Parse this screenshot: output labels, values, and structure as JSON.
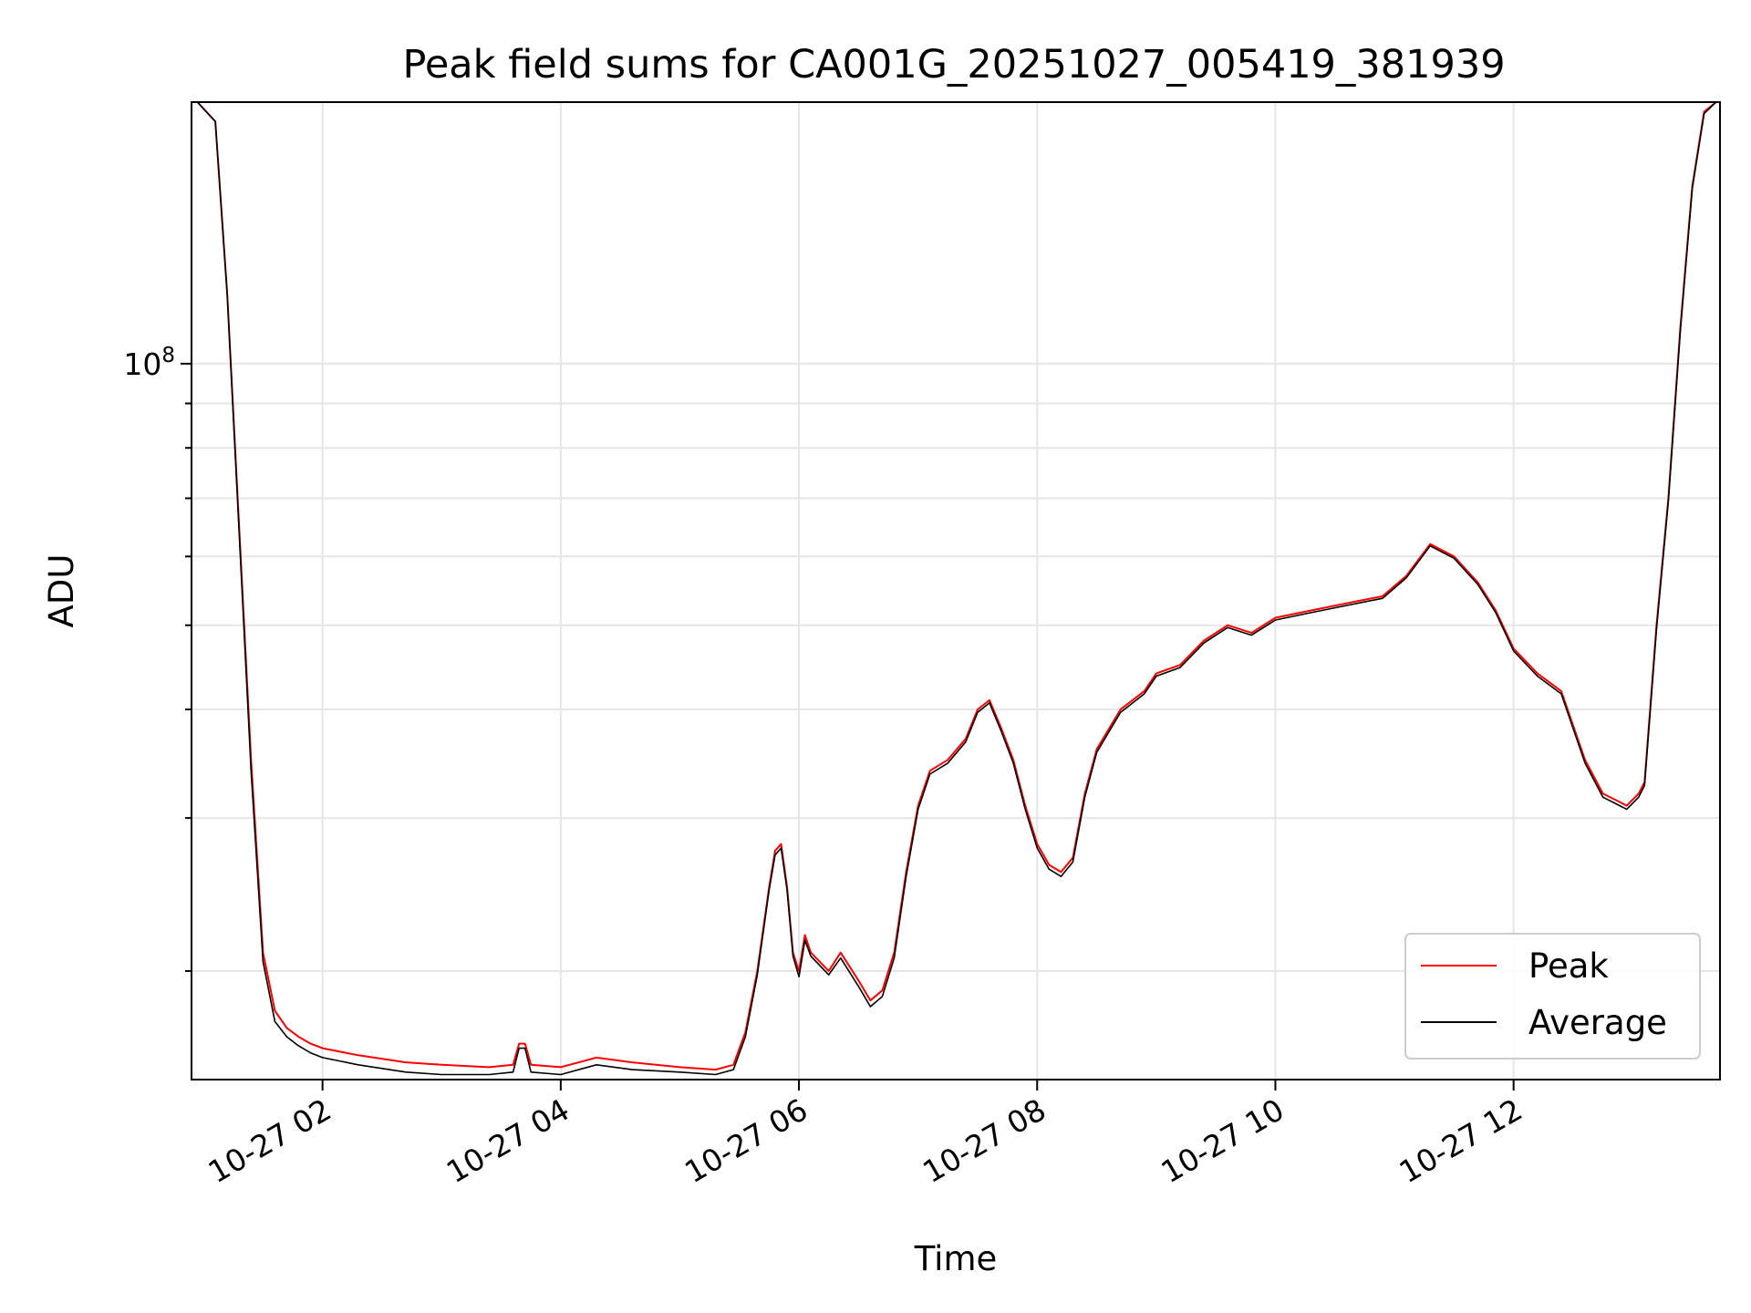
{
  "chart_data": {
    "type": "line",
    "title": "Peak field sums for CA001G_20251027_005419_381939",
    "xlabel": "Time",
    "ylabel": "ADU",
    "y_scale": "log",
    "grid": true,
    "legend_position": "lower-right",
    "xlim": [
      "10-27 00:54",
      "10-27 13:44"
    ],
    "ylim": [
      15000000,
      200000000
    ],
    "x_ticks": [
      "10-27 02",
      "10-27 04",
      "10-27 06",
      "10-27 08",
      "10-27 10",
      "10-27 12"
    ],
    "x_tick_hours": [
      2,
      4,
      6,
      8,
      10,
      12
    ],
    "y_ticks": [
      {
        "value": 100000000,
        "base": "10",
        "exp": "8"
      }
    ],
    "y_minor_ticks": [
      20000000,
      30000000,
      40000000,
      50000000,
      60000000,
      70000000,
      80000000,
      90000000
    ],
    "x_hours": [
      0.95,
      1.1,
      1.2,
      1.3,
      1.4,
      1.5,
      1.6,
      1.7,
      1.8,
      1.9,
      2.0,
      2.3,
      2.7,
      3.0,
      3.4,
      3.6,
      3.65,
      3.7,
      3.75,
      4.0,
      4.3,
      4.6,
      5.0,
      5.3,
      5.45,
      5.55,
      5.65,
      5.75,
      5.8,
      5.85,
      5.9,
      5.95,
      6.0,
      6.05,
      6.1,
      6.25,
      6.35,
      6.5,
      6.6,
      6.7,
      6.8,
      6.9,
      7.0,
      7.1,
      7.25,
      7.4,
      7.5,
      7.6,
      7.7,
      7.8,
      7.9,
      8.0,
      8.1,
      8.2,
      8.3,
      8.4,
      8.5,
      8.7,
      8.9,
      9.0,
      9.2,
      9.4,
      9.6,
      9.8,
      10.0,
      10.3,
      10.6,
      10.9,
      11.1,
      11.3,
      11.5,
      11.7,
      11.85,
      12.0,
      12.2,
      12.4,
      12.6,
      12.75,
      12.85,
      12.95,
      13.05,
      13.1,
      13.2,
      13.3,
      13.4,
      13.5,
      13.6,
      13.7
    ],
    "series": [
      {
        "name": "Peak",
        "color": "#ff0000",
        "values": [
          200000000,
          190000000,
          120000000,
          65000000,
          35000000,
          21000000,
          18000000,
          17200000,
          16800000,
          16500000,
          16300000,
          16000000,
          15700000,
          15600000,
          15500000,
          15600000,
          16500000,
          16500000,
          15600000,
          15500000,
          15900000,
          15700000,
          15500000,
          15400000,
          15600000,
          17000000,
          20000000,
          25000000,
          27500000,
          28000000,
          25000000,
          21000000,
          20000000,
          22000000,
          21000000,
          20000000,
          21000000,
          19500000,
          18500000,
          19000000,
          21000000,
          26000000,
          31000000,
          34000000,
          35000000,
          37000000,
          40000000,
          41000000,
          38000000,
          35000000,
          31000000,
          28000000,
          26500000,
          26000000,
          27000000,
          32000000,
          36000000,
          40000000,
          42000000,
          44000000,
          45000000,
          48000000,
          50000000,
          49000000,
          51000000,
          52000000,
          53000000,
          54000000,
          57000000,
          62000000,
          60000000,
          56000000,
          52000000,
          47000000,
          44000000,
          42000000,
          35000000,
          32000000,
          31500000,
          31000000,
          32000000,
          33000000,
          50000000,
          70000000,
          110000000,
          160000000,
          195000000,
          200000000
        ]
      },
      {
        "name": "Average",
        "color": "#000000",
        "values": [
          200000000,
          190000000,
          120000000,
          64000000,
          34000000,
          20500000,
          17500000,
          16800000,
          16400000,
          16100000,
          15900000,
          15600000,
          15300000,
          15200000,
          15200000,
          15300000,
          16300000,
          16300000,
          15300000,
          15200000,
          15600000,
          15400000,
          15300000,
          15200000,
          15400000,
          16800000,
          19800000,
          24800000,
          27200000,
          27700000,
          24800000,
          20800000,
          19700000,
          21700000,
          20800000,
          19800000,
          20700000,
          19200000,
          18200000,
          18700000,
          20700000,
          25700000,
          30700000,
          33700000,
          34700000,
          36700000,
          39700000,
          40700000,
          37700000,
          34700000,
          30700000,
          27700000,
          26200000,
          25700000,
          26700000,
          31700000,
          35700000,
          39700000,
          41700000,
          43700000,
          44700000,
          47700000,
          49700000,
          48700000,
          50700000,
          51700000,
          52700000,
          53700000,
          56700000,
          61700000,
          59700000,
          55700000,
          51700000,
          46700000,
          43700000,
          41700000,
          34700000,
          31700000,
          31200000,
          30700000,
          31700000,
          32700000,
          49500000,
          69500000,
          109000000,
          159000000,
          194000000,
          200000000
        ]
      }
    ]
  }
}
